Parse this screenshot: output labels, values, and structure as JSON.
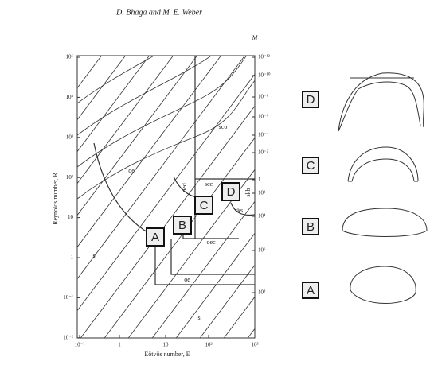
{
  "header": "D. Bhaga and M. E. Weber",
  "plot": {
    "y_label": "Reynolds number, R",
    "x_label": "Eötvös number, E",
    "m_label": "M",
    "y_ticks": [
      "10⁵",
      "10⁴",
      "10³",
      "10²",
      "10",
      "1",
      "10⁻¹",
      "10⁻²"
    ],
    "x_ticks": [
      "10⁻¹",
      "1",
      "10",
      "10²",
      "10³"
    ],
    "m_ticks": [
      "10⁻¹²",
      "10⁻¹⁰",
      "10⁻⁸",
      "10⁻⁶",
      "10⁻⁴",
      "10⁻²",
      "1",
      "10²",
      "10⁴",
      "10⁶",
      "10⁸"
    ],
    "regions": [
      "sco",
      "oe",
      "oed",
      "scc",
      "sks",
      "skb",
      "s",
      "oec",
      "oe",
      "s"
    ],
    "markers": [
      "A",
      "B",
      "C",
      "D"
    ]
  },
  "shapes": [
    {
      "label": "D"
    },
    {
      "label": "C"
    },
    {
      "label": "B"
    },
    {
      "label": "A"
    }
  ]
}
